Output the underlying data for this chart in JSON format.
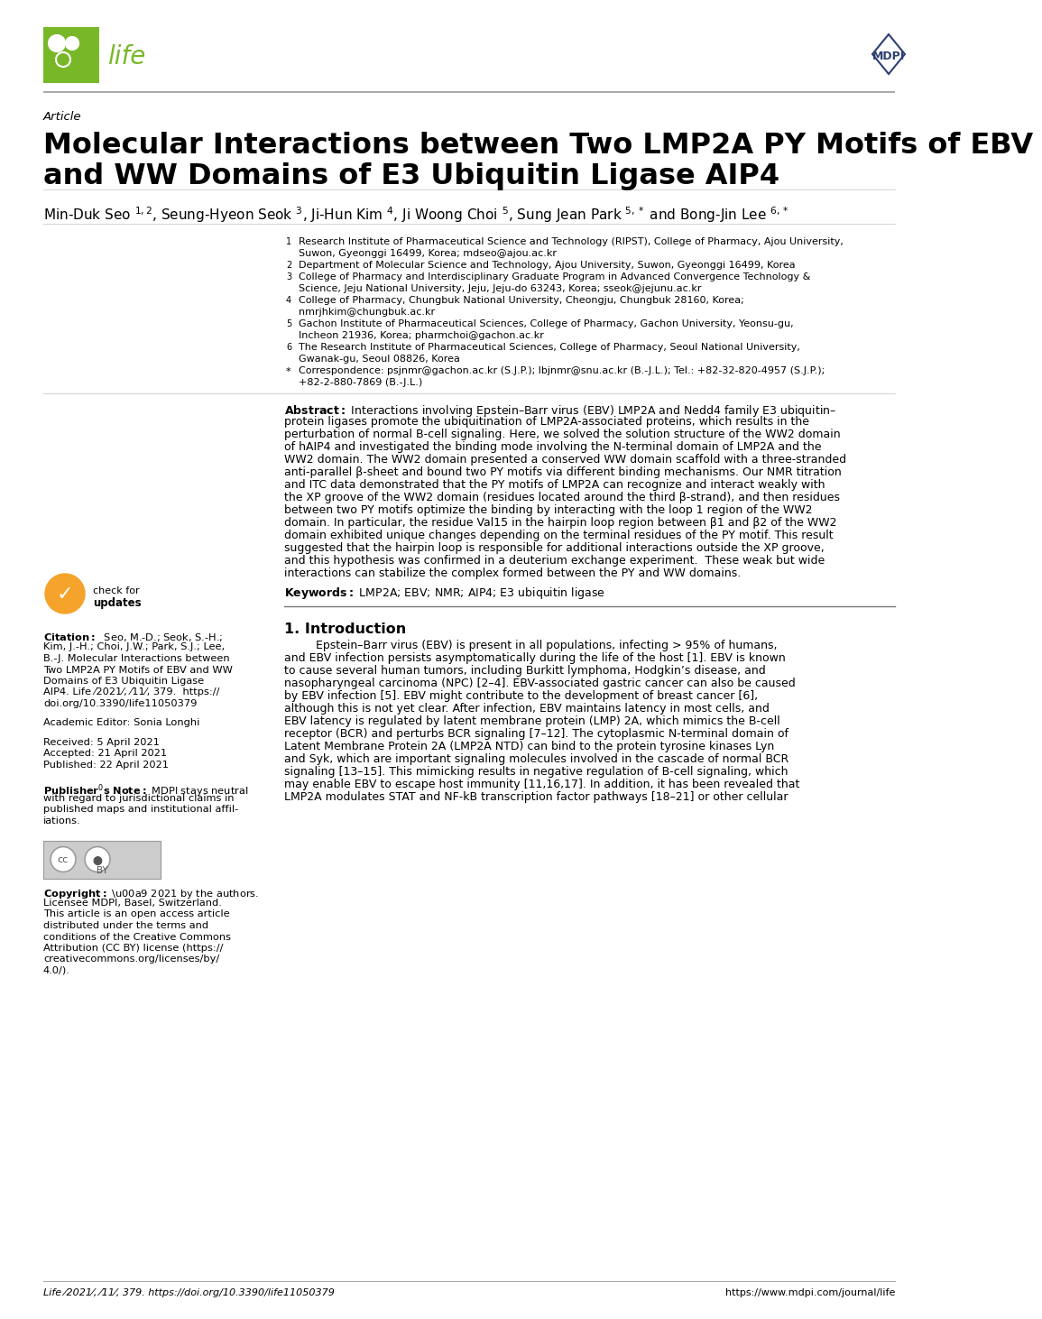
{
  "title_article": "Article",
  "title_main_line1": "Molecular Interactions between Two LMP2A PY Motifs of EBV",
  "title_main_line2": "and WW Domains of E3 Ubiquitin Ligase AIP4",
  "life_green": "#78b828",
  "mdpi_blue": "#2d4073",
  "footer_left": "Life 2021, 11, 379. https://doi.org/10.3390/life11050379",
  "footer_right": "https://www.mdpi.com/journal/life"
}
